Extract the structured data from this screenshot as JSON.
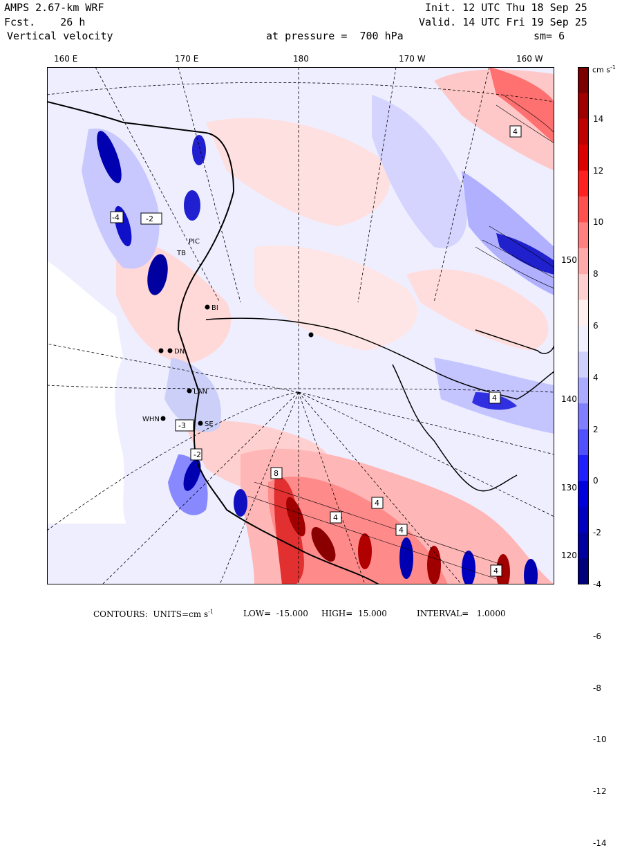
{
  "header": {
    "model": "AMPS 2.67-km WRF",
    "forecast": "Fcst.    26 h",
    "field": "Vertical velocity",
    "pressure": "at pressure =  700 hPa",
    "init": "Init. 12 UTC Thu 18 Sep 25",
    "valid": "Valid. 14 UTC Fri 19 Sep 25",
    "smoothing": "sm= 6"
  },
  "longitude_labels": [
    "160 E",
    "170 E",
    "180",
    "170 W",
    "160 W"
  ],
  "latitude_labels": [
    "150 W",
    "140 W",
    "130 W",
    "120 W"
  ],
  "colorbar": {
    "units": "cm s",
    "units_exp": "-1",
    "ticks": [
      "14",
      "12",
      "10",
      "8",
      "6",
      "4",
      "2",
      "0",
      "-2",
      "-4",
      "-6",
      "-8",
      "-10",
      "-12",
      "-14"
    ],
    "colors_high_to_low": [
      "#7a0000",
      "#9e0000",
      "#c00000",
      "#dd0000",
      "#ff2020",
      "#ff5050",
      "#ff8080",
      "#ffaaaa",
      "#ffd0d0",
      "#fff0f0",
      "#f0f0ff",
      "#d0d0ff",
      "#aaaaff",
      "#8080ff",
      "#5050ff",
      "#2020ff",
      "#0000dd",
      "#0000c0",
      "#00009e",
      "#00007a"
    ]
  },
  "stations": [
    "BI",
    "DN",
    "LAN",
    "WHN",
    "SE",
    "PIC",
    "TB"
  ],
  "contour_boxes": [
    "-2",
    "-4",
    "4",
    "-3",
    "-2",
    "8",
    "4",
    "4",
    "4",
    "4",
    "4"
  ],
  "footer": {
    "contours": "CONTOURS:  UNITS=cm s",
    "units_exp": "-1",
    "low": "LOW=  -15.000",
    "high": "HIGH=  15.000",
    "interval": "INTERVAL=   1.0000"
  }
}
